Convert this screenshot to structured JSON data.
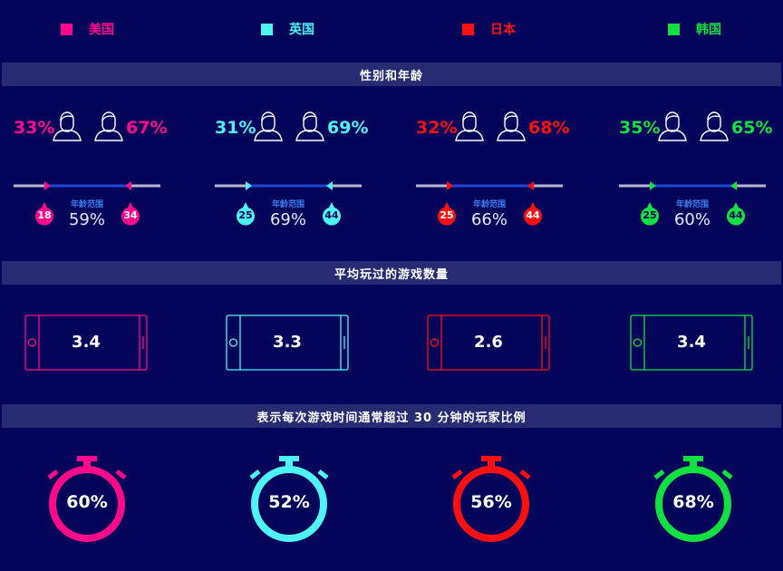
{
  "legend": [
    {
      "label": "美国",
      "color": "#ff0a8a"
    },
    {
      "label": "英国",
      "color": "#4ef4f4"
    },
    {
      "label": "日本",
      "color": "#ff1010"
    },
    {
      "label": "韩国",
      "color": "#10e040"
    }
  ],
  "sections": {
    "gender_age": "性别和年龄",
    "games": "平均玩过的游戏数量",
    "playtime": "表示每次游戏时间通常超过 30 分钟的玩家比例"
  },
  "age_range_label": "年龄范围",
  "countries": [
    {
      "female_pct": "33%",
      "male_pct": "67%",
      "age_min": "18",
      "age_max": "34",
      "age_share": "59%",
      "games": "3.4",
      "playtime_pct": "60%",
      "color": "#ff0a8a"
    },
    {
      "female_pct": "31%",
      "male_pct": "69%",
      "age_min": "25",
      "age_max": "44",
      "age_share": "69%",
      "games": "3.3",
      "playtime_pct": "52%",
      "color": "#4ef4f4"
    },
    {
      "female_pct": "32%",
      "male_pct": "68%",
      "age_min": "25",
      "age_max": "44",
      "age_share": "66%",
      "games": "2.6",
      "playtime_pct": "56%",
      "color": "#ff1010"
    },
    {
      "female_pct": "35%",
      "male_pct": "65%",
      "age_min": "25",
      "age_max": "44",
      "age_share": "60%",
      "games": "3.4",
      "playtime_pct": "68%",
      "color": "#10e040"
    }
  ]
}
